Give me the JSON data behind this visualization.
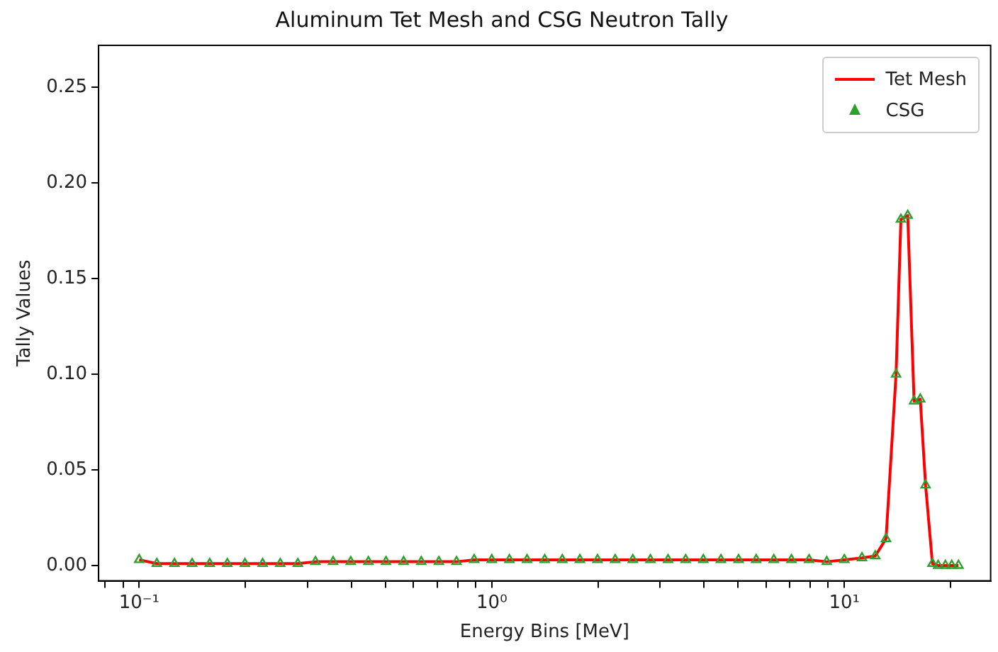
{
  "chart_data": {
    "type": "line",
    "title": "Aluminum Tet Mesh and CSG Neutron Tally",
    "xlabel": "Energy Bins [MeV]",
    "ylabel": "Tally Values",
    "x": [
      0.1,
      0.1122,
      0.1259,
      0.1413,
      0.1585,
      0.1778,
      0.1995,
      0.2239,
      0.2512,
      0.2818,
      0.3162,
      0.3548,
      0.3981,
      0.4467,
      0.5012,
      0.5623,
      0.631,
      0.7079,
      0.7943,
      0.8913,
      1,
      1.122,
      1.259,
      1.413,
      1.585,
      1.778,
      1.995,
      2.239,
      2.512,
      2.818,
      3.162,
      3.548,
      3.981,
      4.467,
      5.012,
      5.623,
      6.31,
      7.079,
      7.943,
      8.913,
      10,
      11.22,
      12.24,
      13.13,
      14.02,
      14.47,
      15.13,
      15.77,
      16.42,
      17,
      17.78,
      18.46,
      19.35,
      20.17,
      21.08
    ],
    "series": [
      {
        "name": "Tet Mesh",
        "marker": "none",
        "color": "#ff0000",
        "values": [
          0.003,
          0.001,
          0.001,
          0.001,
          0.001,
          0.001,
          0.001,
          0.001,
          0.001,
          0.001,
          0.002,
          0.002,
          0.002,
          0.002,
          0.002,
          0.002,
          0.002,
          0.002,
          0.002,
          0.003,
          0.003,
          0.003,
          0.003,
          0.003,
          0.003,
          0.003,
          0.003,
          0.003,
          0.003,
          0.003,
          0.003,
          0.003,
          0.003,
          0.003,
          0.003,
          0.003,
          0.003,
          0.003,
          0.003,
          0.002,
          0.003,
          0.004,
          0.005,
          0.014,
          0.1,
          0.181,
          0.183,
          0.086,
          0.087,
          0.042,
          0.001,
          0,
          0,
          0,
          0
        ]
      },
      {
        "name": "CSG",
        "type": "scatter",
        "marker": "triangle",
        "color": "#2ca02c",
        "values": [
          0.003,
          0.001,
          0.001,
          0.001,
          0.001,
          0.001,
          0.001,
          0.001,
          0.001,
          0.001,
          0.002,
          0.002,
          0.002,
          0.002,
          0.002,
          0.002,
          0.002,
          0.002,
          0.002,
          0.003,
          0.003,
          0.003,
          0.003,
          0.003,
          0.003,
          0.003,
          0.003,
          0.003,
          0.003,
          0.003,
          0.003,
          0.003,
          0.003,
          0.003,
          0.003,
          0.003,
          0.003,
          0.003,
          0.003,
          0.002,
          0.003,
          0.004,
          0.005,
          0.014,
          0.1,
          0.181,
          0.183,
          0.086,
          0.087,
          0.042,
          0.001,
          0,
          0,
          0,
          0
        ]
      }
    ],
    "log": "x",
    "xlim": [
      0.0767,
      26
    ],
    "xticks": [
      {
        "value": 0.08,
        "label": null
      },
      {
        "value": 0.09,
        "label": null
      },
      {
        "value": 0.1,
        "label": "10⁻¹"
      },
      {
        "value": 0.2,
        "label": null
      },
      {
        "value": 0.3,
        "label": null
      },
      {
        "value": 0.4,
        "label": null
      },
      {
        "value": 0.5,
        "label": null
      },
      {
        "value": 0.6,
        "label": null
      },
      {
        "value": 0.7,
        "label": null
      },
      {
        "value": 0.8,
        "label": null
      },
      {
        "value": 0.9,
        "label": null
      },
      {
        "value": 1,
        "label": "10⁰"
      },
      {
        "value": 2,
        "label": null
      },
      {
        "value": 3,
        "label": null
      },
      {
        "value": 4,
        "label": null
      },
      {
        "value": 5,
        "label": null
      },
      {
        "value": 6,
        "label": null
      },
      {
        "value": 7,
        "label": null
      },
      {
        "value": 8,
        "label": null
      },
      {
        "value": 9,
        "label": null
      },
      {
        "value": 10,
        "label": "10¹"
      },
      {
        "value": 20,
        "label": null
      }
    ],
    "ylim": [
      -0.008,
      0.272
    ],
    "yticks": [
      {
        "value": 0,
        "label": "0.00"
      },
      {
        "value": 0.05,
        "label": "0.05"
      },
      {
        "value": 0.1,
        "label": "0.10"
      },
      {
        "value": 0.15,
        "label": "0.15"
      },
      {
        "value": 0.2,
        "label": "0.20"
      },
      {
        "value": 0.25,
        "label": "0.25"
      }
    ],
    "grid": false,
    "legend": "top right"
  }
}
